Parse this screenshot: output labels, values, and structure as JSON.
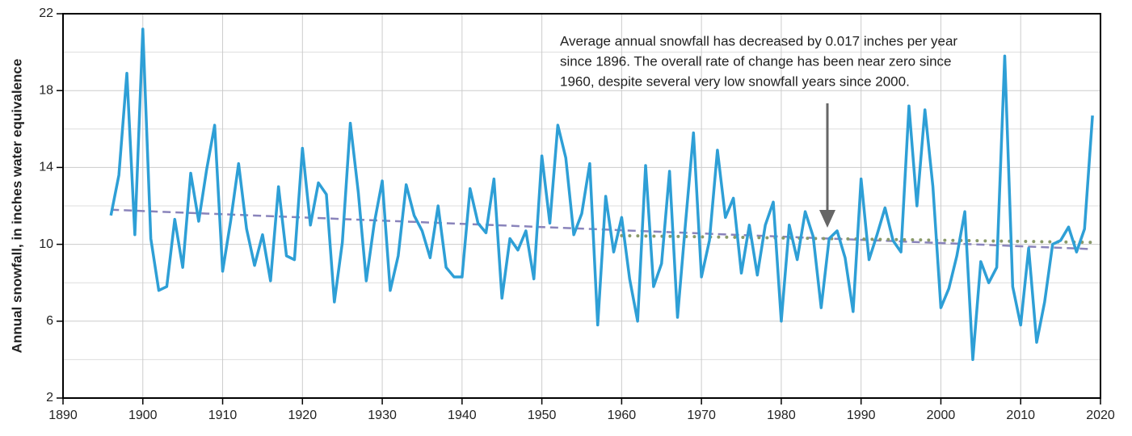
{
  "chart_data": {
    "type": "line",
    "y_label": "Annual snowfall, in inches water equivalence",
    "annotation": [
      "Average annual snowfall has decreased by 0.017 inches per year",
      "since 1896. The overall rate of change has been near zero since",
      "1960, despite several very low snowfall years since 2000."
    ],
    "x": [
      1896,
      1897,
      1898,
      1899,
      1900,
      1901,
      1902,
      1903,
      1904,
      1905,
      1906,
      1907,
      1908,
      1909,
      1910,
      1911,
      1912,
      1913,
      1914,
      1915,
      1916,
      1917,
      1918,
      1919,
      1920,
      1921,
      1922,
      1923,
      1924,
      1925,
      1926,
      1927,
      1928,
      1929,
      1930,
      1931,
      1932,
      1933,
      1934,
      1935,
      1936,
      1937,
      1938,
      1939,
      1940,
      1941,
      1942,
      1943,
      1944,
      1945,
      1946,
      1947,
      1948,
      1949,
      1950,
      1951,
      1952,
      1953,
      1954,
      1955,
      1956,
      1957,
      1958,
      1959,
      1960,
      1961,
      1962,
      1963,
      1964,
      1965,
      1966,
      1967,
      1968,
      1969,
      1970,
      1971,
      1972,
      1973,
      1974,
      1975,
      1976,
      1977,
      1978,
      1979,
      1980,
      1981,
      1982,
      1983,
      1984,
      1985,
      1986,
      1987,
      1988,
      1989,
      1990,
      1991,
      1992,
      1993,
      1994,
      1995,
      1996,
      1997,
      1998,
      1999,
      2000,
      2001,
      2002,
      2003,
      2004,
      2005,
      2006,
      2007,
      2008,
      2009,
      2010,
      2011,
      2012,
      2013,
      2014,
      2015,
      2016,
      2017,
      2018,
      2019
    ],
    "series": [
      {
        "color": "#2e9fd6",
        "values": [
          11.5,
          13.6,
          18.9,
          10.5,
          21.2,
          10.3,
          7.6,
          7.8,
          11.3,
          8.8,
          13.7,
          11.2,
          13.9,
          16.2,
          8.6,
          11.2,
          14.2,
          10.8,
          8.9,
          10.5,
          8.1,
          13.0,
          9.4,
          9.2,
          15.0,
          11.0,
          13.2,
          12.6,
          7.0,
          10.1,
          16.3,
          12.7,
          8.1,
          11.1,
          13.3,
          7.6,
          9.4,
          13.1,
          11.5,
          10.7,
          9.3,
          12.0,
          8.8,
          8.3,
          8.3,
          12.9,
          11.1,
          10.6,
          13.4,
          7.2,
          10.3,
          9.7,
          10.7,
          8.2,
          14.6,
          11.1,
          16.2,
          14.5,
          10.5,
          11.6,
          14.2,
          5.8,
          12.5,
          9.6,
          11.4,
          8.2,
          6.0,
          14.1,
          7.8,
          9.0,
          13.8,
          6.2,
          11.1,
          15.8,
          8.3,
          10.2,
          14.9,
          11.4,
          12.4,
          8.5,
          11.0,
          8.4,
          11.0,
          12.2,
          6.0,
          11.0,
          9.2,
          11.7,
          10.4,
          6.7,
          10.3,
          10.7,
          9.3,
          6.5,
          13.4,
          9.2,
          10.5,
          11.9,
          10.2,
          9.6,
          17.2,
          12.0,
          17.0,
          13.0,
          6.7,
          7.7,
          9.4,
          11.7,
          4.0,
          9.1,
          8.0,
          8.8,
          19.8,
          7.8,
          5.8,
          9.8,
          4.9,
          7.0,
          10.0,
          10.2,
          10.9,
          9.6,
          10.8,
          16.7
        ]
      }
    ],
    "trends": [
      {
        "x": [
          1896,
          2019
        ],
        "values": [
          11.8,
          9.75
        ],
        "color": "#8a84bb",
        "style": "dashed"
      },
      {
        "x": [
          1960,
          2019
        ],
        "values": [
          10.45,
          10.1
        ],
        "color": "#8a9a6a",
        "style": "dotted"
      }
    ],
    "xlim": [
      1890,
      2020
    ],
    "ylim": [
      2,
      22
    ],
    "xticks": [
      1890,
      1900,
      1910,
      1920,
      1930,
      1940,
      1950,
      1960,
      1970,
      1980,
      1990,
      2000,
      2010,
      2020
    ],
    "yticks": [
      2,
      6,
      10,
      14,
      18,
      22
    ],
    "y_minor_grid": [
      4,
      8,
      12,
      16,
      20
    ],
    "grid": true
  }
}
